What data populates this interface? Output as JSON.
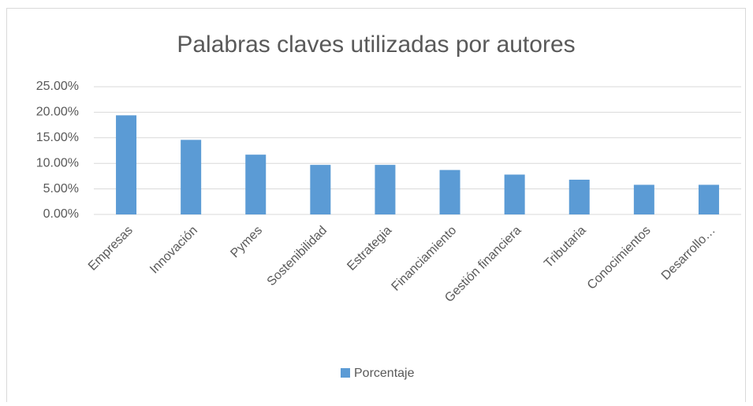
{
  "chart_data": {
    "type": "bar",
    "title": "Palabras claves utilizadas por autores",
    "categories": [
      "Empresas",
      "Innovación",
      "Pymes",
      "Sostenibilidad",
      "Estrategia",
      "Financiamiento",
      "Gestión financiera",
      "Tributaria",
      "Conocimientos",
      "Desarrollo…"
    ],
    "series": [
      {
        "name": "Porcentaje",
        "color": "#5b9bd5",
        "values": [
          19.4,
          14.6,
          11.7,
          9.7,
          9.7,
          8.7,
          7.8,
          6.8,
          5.8,
          5.8
        ]
      }
    ],
    "ylim": [
      0,
      25
    ],
    "yticks": [
      {
        "value": 0,
        "label": "0.00%"
      },
      {
        "value": 5,
        "label": "5.00%"
      },
      {
        "value": 10,
        "label": "10.00%"
      },
      {
        "value": 15,
        "label": "15.00%"
      },
      {
        "value": 20,
        "label": "20.00%"
      },
      {
        "value": 25,
        "label": "25.00%"
      }
    ],
    "grid": true,
    "legend": "bottom"
  }
}
